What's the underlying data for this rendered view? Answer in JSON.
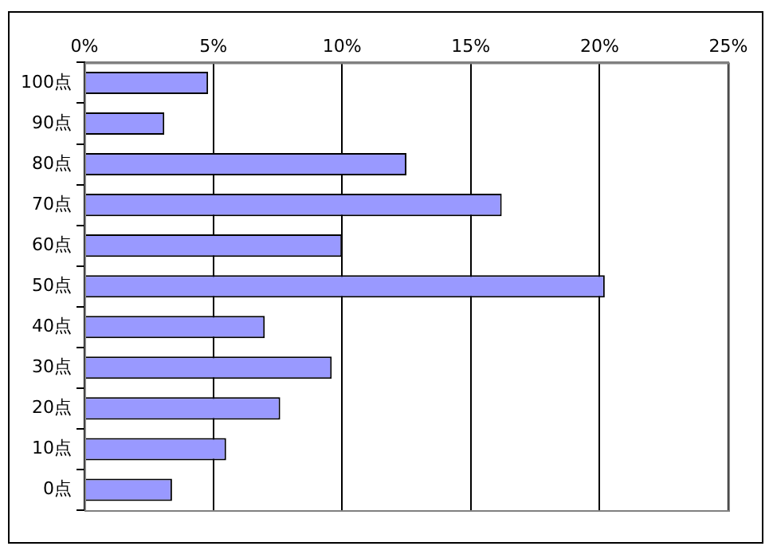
{
  "chart_data": {
    "type": "bar",
    "orientation": "horizontal",
    "categories": [
      "100点",
      "90点",
      "80点",
      "70点",
      "60点",
      "50点",
      "40点",
      "30点",
      "20点",
      "10点",
      "0点"
    ],
    "values": [
      4.8,
      3.1,
      12.5,
      16.2,
      10.0,
      20.2,
      7.0,
      9.6,
      7.6,
      5.5,
      3.4
    ],
    "color": "#9999ff",
    "xlim": [
      0,
      25
    ],
    "xticks": [
      {
        "value": 0,
        "label": "0%"
      },
      {
        "value": 5,
        "label": "5%"
      },
      {
        "value": 10,
        "label": "10%"
      },
      {
        "value": 15,
        "label": "15%"
      },
      {
        "value": 20,
        "label": "20%"
      },
      {
        "value": 25,
        "label": "25%"
      }
    ],
    "grid": "x",
    "legend": false
  }
}
